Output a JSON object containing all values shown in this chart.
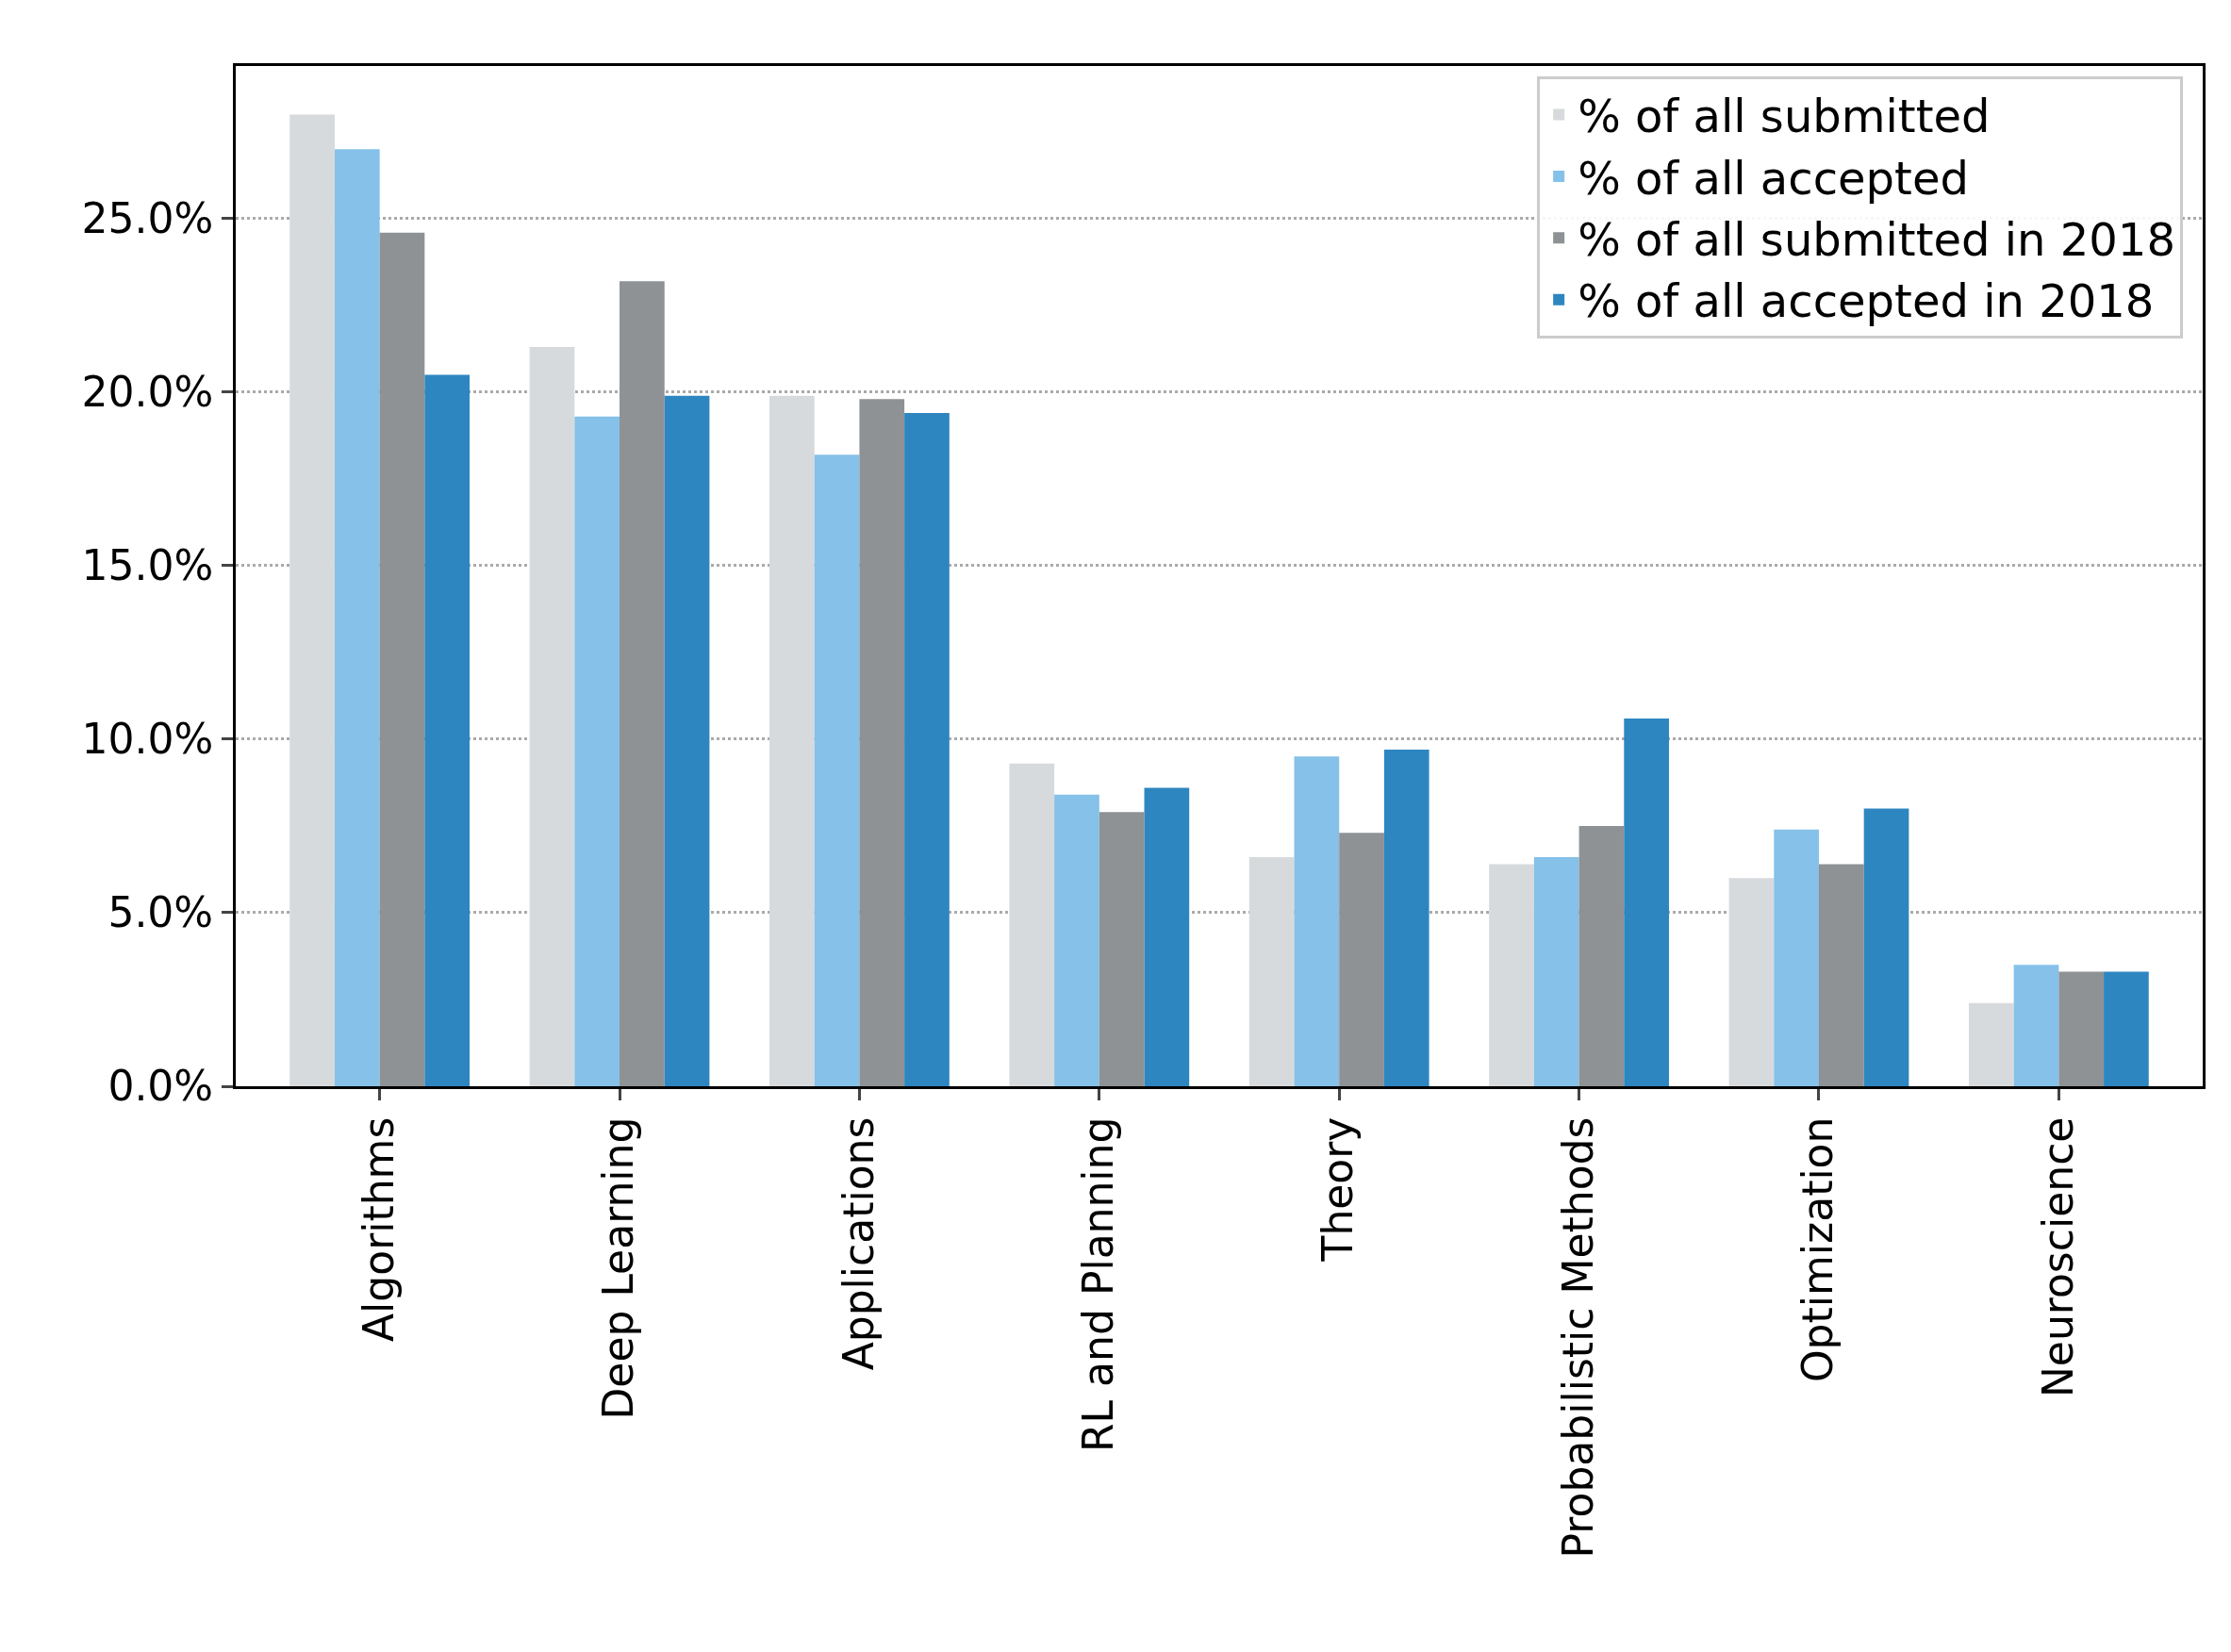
{
  "chart_data": {
    "type": "bar",
    "categories": [
      "Algorithms",
      "Deep Learning",
      "Applications",
      "RL and Planning",
      "Theory",
      "Probabilistic Methods",
      "Optimization",
      "Neuroscience"
    ],
    "series": [
      {
        "name": "% of all submitted",
        "color": "#d7dadc",
        "values": [
          28.0,
          21.3,
          19.9,
          9.3,
          6.6,
          6.4,
          6.0,
          2.4
        ]
      },
      {
        "name": "% of all accepted",
        "color": "#85c1e9",
        "values": [
          27.0,
          19.3,
          18.2,
          8.4,
          9.5,
          6.6,
          7.4,
          3.5
        ]
      },
      {
        "name": "% of all submitted in 2018",
        "color": "#8e9294",
        "values": [
          24.6,
          23.2,
          19.8,
          7.9,
          7.3,
          7.5,
          6.4,
          3.3
        ]
      },
      {
        "name": "% of all accepted in 2018",
        "color": "#2e86c1",
        "values": [
          20.5,
          19.9,
          19.4,
          8.6,
          9.7,
          10.6,
          8.0,
          3.3
        ]
      }
    ],
    "ylim": [
      0,
      29.4
    ],
    "yticks": [
      {
        "value": 0,
        "label": "0.0%"
      },
      {
        "value": 5,
        "label": "5.0%"
      },
      {
        "value": 10,
        "label": "10.0%"
      },
      {
        "value": 15,
        "label": "15.0%"
      },
      {
        "value": 20,
        "label": "20.0%"
      },
      {
        "value": 25,
        "label": "25.0%"
      }
    ],
    "grid": "y",
    "legend": "top right"
  }
}
